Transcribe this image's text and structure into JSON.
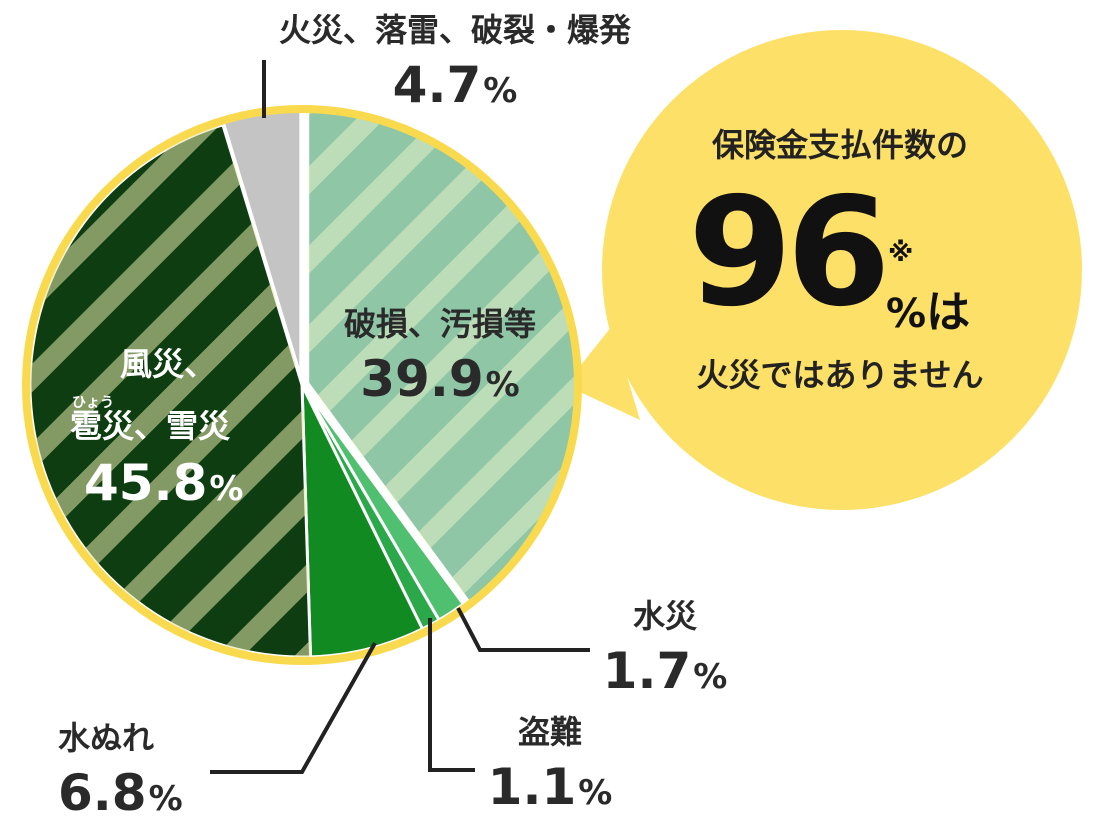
{
  "chart_data": {
    "type": "pie",
    "slices": [
      {
        "label": "破損、汚損等",
        "value": 39.9,
        "unit": "%",
        "color": "#8fc6a6"
      },
      {
        "label": "水災",
        "value": 1.7,
        "unit": "%",
        "color": "#4fbf70"
      },
      {
        "label": "盗難",
        "value": 1.1,
        "unit": "%",
        "color": "#2aa84a"
      },
      {
        "label": "水ぬれ",
        "value": 6.8,
        "unit": "%",
        "color": "#118a22"
      },
      {
        "label_line1": "風災、",
        "label_line2": "雹災、雪災",
        "ruby": "ひょう",
        "value": 45.8,
        "unit": "%",
        "color": "#0d3d10"
      },
      {
        "label": "火災、落雷、破裂・爆発",
        "value": 4.7,
        "unit": "%",
        "color": "#c4c4c4"
      }
    ]
  },
  "callout": {
    "title": "保険金支払件数の",
    "big_number": "96",
    "note_mark": "※",
    "suffix_pct": "%",
    "suffix_text": "は",
    "subtitle": "火災ではありません"
  },
  "colors": {
    "outline": "#f9da4f",
    "callout_bg": "#fde067",
    "stripe": "rgba(255,255,210,0.4)",
    "leader": "#222222"
  }
}
